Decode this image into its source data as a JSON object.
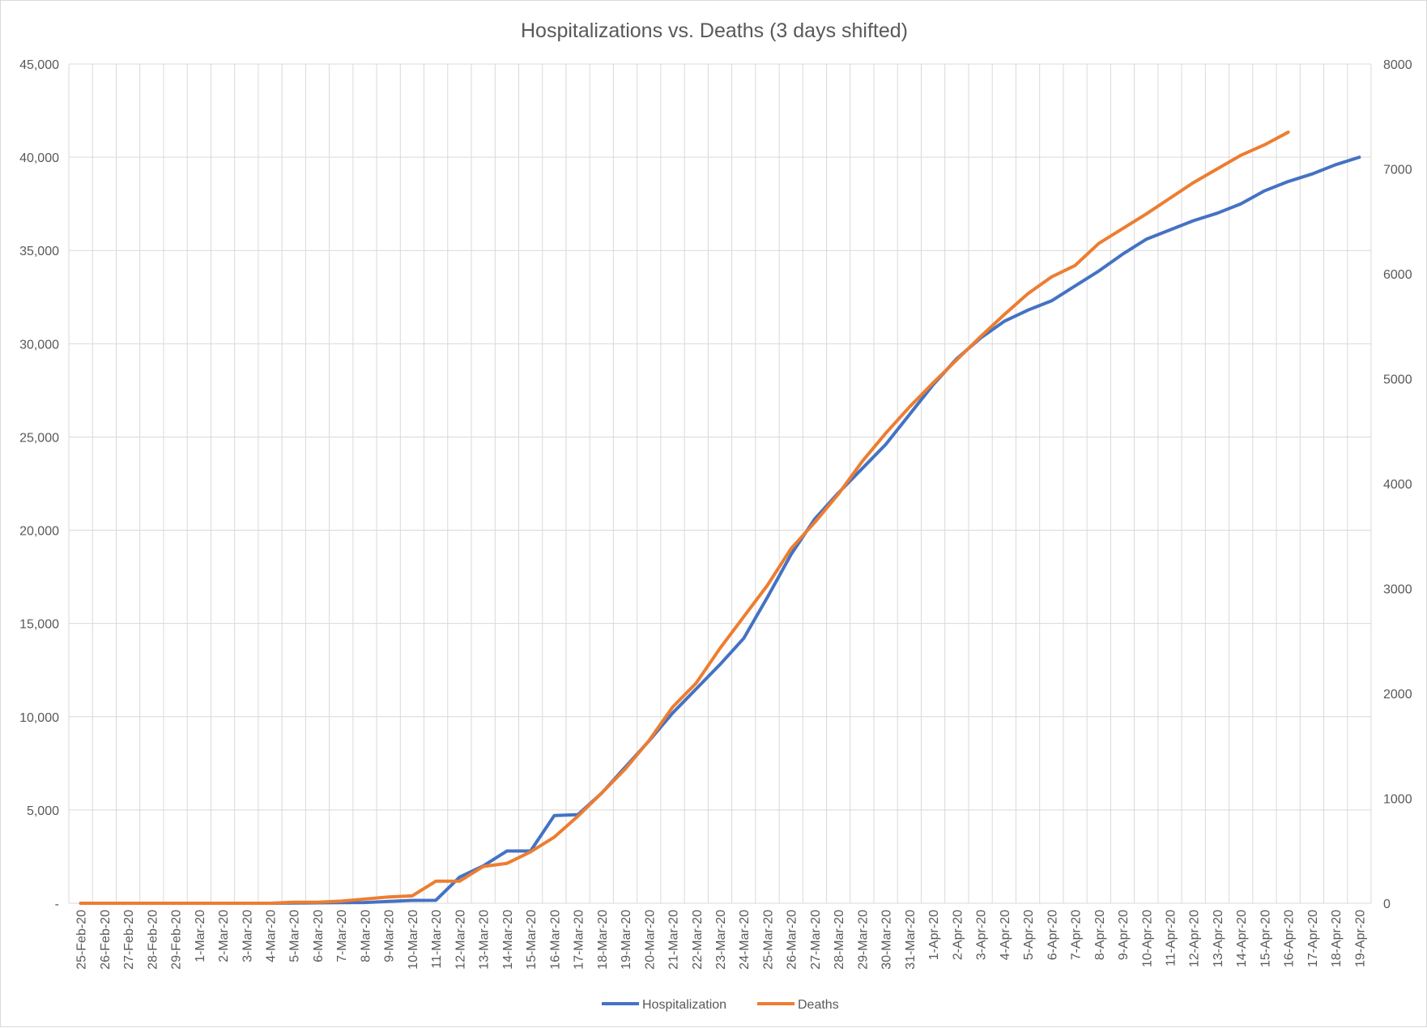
{
  "chart_data": {
    "type": "line",
    "title": "Hospitalizations vs. Deaths (3 days shifted)",
    "xlabel": "",
    "ylabel": "",
    "grid": true,
    "legend_position": "bottom",
    "categories": [
      "25-Feb-20",
      "26-Feb-20",
      "27-Feb-20",
      "28-Feb-20",
      "29-Feb-20",
      "1-Mar-20",
      "2-Mar-20",
      "3-Mar-20",
      "4-Mar-20",
      "5-Mar-20",
      "6-Mar-20",
      "7-Mar-20",
      "8-Mar-20",
      "9-Mar-20",
      "10-Mar-20",
      "11-Mar-20",
      "12-Mar-20",
      "13-Mar-20",
      "14-Mar-20",
      "15-Mar-20",
      "16-Mar-20",
      "17-Mar-20",
      "18-Mar-20",
      "19-Mar-20",
      "20-Mar-20",
      "21-Mar-20",
      "22-Mar-20",
      "23-Mar-20",
      "24-Mar-20",
      "25-Mar-20",
      "26-Mar-20",
      "27-Mar-20",
      "28-Mar-20",
      "29-Mar-20",
      "30-Mar-20",
      "31-Mar-20",
      "1-Apr-20",
      "2-Apr-20",
      "3-Apr-20",
      "4-Apr-20",
      "5-Apr-20",
      "6-Apr-20",
      "7-Apr-20",
      "8-Apr-20",
      "9-Apr-20",
      "10-Apr-20",
      "11-Apr-20",
      "12-Apr-20",
      "13-Apr-20",
      "14-Apr-20",
      "15-Apr-20",
      "16-Apr-20",
      "17-Apr-20",
      "18-Apr-20",
      "19-Apr-20"
    ],
    "y_left": {
      "ylim": [
        0,
        45000
      ],
      "ticks": [
        0,
        5000,
        10000,
        15000,
        20000,
        25000,
        30000,
        35000,
        40000,
        45000
      ],
      "tick_labels": [
        "-",
        "5,000",
        "10,000",
        "15,000",
        "20,000",
        "25,000",
        "30,000",
        "35,000",
        "40,000",
        "45,000"
      ]
    },
    "y_right": {
      "ylim": [
        0,
        8000
      ],
      "ticks": [
        0,
        1000,
        2000,
        3000,
        4000,
        5000,
        6000,
        7000,
        8000
      ],
      "tick_labels": [
        "0",
        "1000",
        "2000",
        "3000",
        "4000",
        "5000",
        "6000",
        "7000",
        "8000"
      ]
    },
    "series": [
      {
        "name": "Hospitalization",
        "axis": "left",
        "color": "#4472C4",
        "values": [
          0,
          0,
          0,
          0,
          0,
          0,
          0,
          0,
          0,
          10,
          20,
          30,
          40,
          100,
          150,
          160,
          1400,
          2000,
          2800,
          2800,
          4700,
          4750,
          5900,
          7300,
          8700,
          10200,
          11500,
          12800,
          14200,
          16400,
          18700,
          20600,
          22000,
          23300,
          24600,
          26200,
          27800,
          29200,
          30300,
          31200,
          31800,
          32300,
          33100,
          33900,
          34800,
          35600,
          36100,
          36600,
          37000,
          37500,
          38200,
          38700,
          39100,
          39600,
          40000
        ]
      },
      {
        "name": "Deaths",
        "axis": "right",
        "color": "#ED7D31",
        "values": [
          0,
          0,
          0,
          0,
          0,
          0,
          0,
          0,
          0,
          10,
          10,
          20,
          40,
          60,
          70,
          210,
          210,
          350,
          380,
          490,
          630,
          830,
          1050,
          1280,
          1550,
          1870,
          2100,
          2430,
          2730,
          3030,
          3380,
          3630,
          3900,
          4210,
          4480,
          4730,
          4960,
          5180,
          5400,
          5610,
          5810,
          5970,
          6080,
          6290,
          6430,
          6570,
          6720,
          6870,
          7000,
          7130,
          7230,
          7350,
          null,
          null,
          null
        ]
      }
    ]
  }
}
